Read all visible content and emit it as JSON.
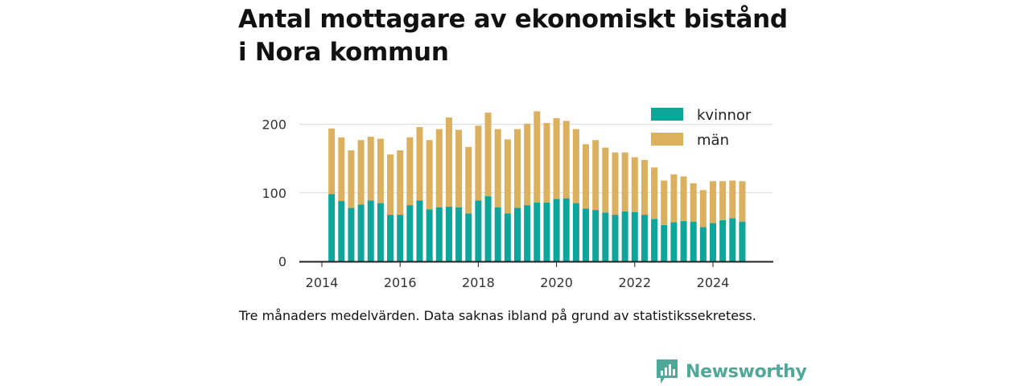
{
  "title_lines": [
    "Antal mottagare av ekonomiskt bistånd",
    "i Nora kommun"
  ],
  "caption": "Tre månaders medelvärden. Data saknas ibland på grund av statistikssekretess.",
  "brand": "Newsworthy",
  "colors": {
    "kvinnor": "#0ea59b",
    "man": "#dbb05f",
    "gridline": "#d8d8d8",
    "axis": "#222222",
    "brand": "#4fa898"
  },
  "chart_data": {
    "type": "bar",
    "stacked": true,
    "x_start": "2014-04",
    "interval_months": 3,
    "x": [
      "2014-04",
      "2014-07",
      "2014-10",
      "2015-01",
      "2015-04",
      "2015-07",
      "2015-10",
      "2016-01",
      "2016-04",
      "2016-07",
      "2016-10",
      "2017-01",
      "2017-04",
      "2017-07",
      "2017-10",
      "2018-01",
      "2018-04",
      "2018-07",
      "2018-10",
      "2019-01",
      "2019-04",
      "2019-07",
      "2019-10",
      "2020-01",
      "2020-04",
      "2020-07",
      "2020-10",
      "2021-01",
      "2021-04",
      "2021-07",
      "2021-10",
      "2022-01",
      "2022-04",
      "2022-07",
      "2022-10",
      "2023-01",
      "2023-04",
      "2023-07",
      "2023-10",
      "2024-01",
      "2024-04",
      "2024-07",
      "2024-10"
    ],
    "series": [
      {
        "name": "kvinnor",
        "values": [
          98,
          88,
          78,
          83,
          89,
          85,
          68,
          68,
          82,
          89,
          76,
          79,
          80,
          79,
          70,
          89,
          95,
          79,
          70,
          78,
          82,
          86,
          86,
          91,
          92,
          85,
          77,
          75,
          71,
          68,
          73,
          72,
          68,
          62,
          53,
          57,
          59,
          58,
          50,
          56,
          60,
          63,
          58
        ]
      },
      {
        "name": "män",
        "values": [
          96,
          93,
          84,
          94,
          93,
          94,
          88,
          94,
          99,
          107,
          101,
          114,
          130,
          113,
          97,
          109,
          122,
          114,
          108,
          115,
          119,
          133,
          116,
          118,
          113,
          108,
          94,
          102,
          95,
          91,
          86,
          80,
          80,
          75,
          65,
          70,
          65,
          56,
          54,
          61,
          57,
          55,
          59
        ]
      }
    ],
    "x_ticks": [
      "2014",
      "2016",
      "2018",
      "2020",
      "2022",
      "2024"
    ],
    "y_ticks": [
      0,
      100,
      200
    ],
    "ylim": [
      0,
      230
    ],
    "legend_position": "top-right",
    "grid": "horizontal"
  }
}
